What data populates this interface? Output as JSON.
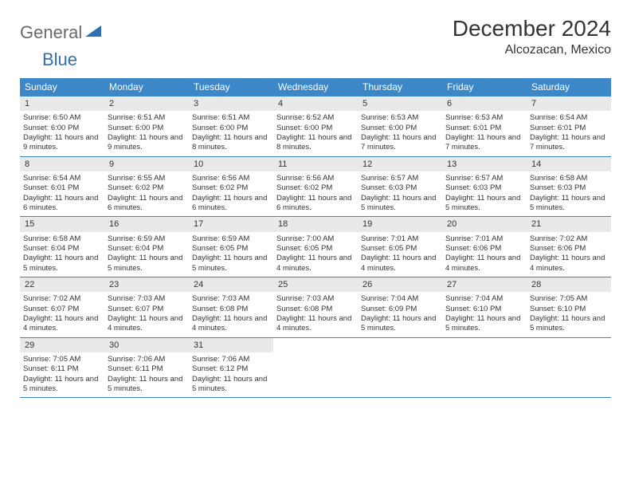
{
  "brand": {
    "word1": "General",
    "word2": "Blue"
  },
  "title": "December 2024",
  "location": "Alcozacan, Mexico",
  "colors": {
    "header_bg": "#3b87c8",
    "header_text": "#ffffff",
    "daynum_bg": "#e9e9e9",
    "border": "#3b87c8",
    "text": "#333333",
    "logo_gray": "#6a6a6a",
    "logo_blue": "#2f6fb0"
  },
  "days_of_week": [
    "Sunday",
    "Monday",
    "Tuesday",
    "Wednesday",
    "Thursday",
    "Friday",
    "Saturday"
  ],
  "weeks": [
    [
      {
        "n": "1",
        "sunrise": "6:50 AM",
        "sunset": "6:00 PM",
        "daylight": "11 hours and 9 minutes."
      },
      {
        "n": "2",
        "sunrise": "6:51 AM",
        "sunset": "6:00 PM",
        "daylight": "11 hours and 9 minutes."
      },
      {
        "n": "3",
        "sunrise": "6:51 AM",
        "sunset": "6:00 PM",
        "daylight": "11 hours and 8 minutes."
      },
      {
        "n": "4",
        "sunrise": "6:52 AM",
        "sunset": "6:00 PM",
        "daylight": "11 hours and 8 minutes."
      },
      {
        "n": "5",
        "sunrise": "6:53 AM",
        "sunset": "6:00 PM",
        "daylight": "11 hours and 7 minutes."
      },
      {
        "n": "6",
        "sunrise": "6:53 AM",
        "sunset": "6:01 PM",
        "daylight": "11 hours and 7 minutes."
      },
      {
        "n": "7",
        "sunrise": "6:54 AM",
        "sunset": "6:01 PM",
        "daylight": "11 hours and 7 minutes."
      }
    ],
    [
      {
        "n": "8",
        "sunrise": "6:54 AM",
        "sunset": "6:01 PM",
        "daylight": "11 hours and 6 minutes."
      },
      {
        "n": "9",
        "sunrise": "6:55 AM",
        "sunset": "6:02 PM",
        "daylight": "11 hours and 6 minutes."
      },
      {
        "n": "10",
        "sunrise": "6:56 AM",
        "sunset": "6:02 PM",
        "daylight": "11 hours and 6 minutes."
      },
      {
        "n": "11",
        "sunrise": "6:56 AM",
        "sunset": "6:02 PM",
        "daylight": "11 hours and 6 minutes."
      },
      {
        "n": "12",
        "sunrise": "6:57 AM",
        "sunset": "6:03 PM",
        "daylight": "11 hours and 5 minutes."
      },
      {
        "n": "13",
        "sunrise": "6:57 AM",
        "sunset": "6:03 PM",
        "daylight": "11 hours and 5 minutes."
      },
      {
        "n": "14",
        "sunrise": "6:58 AM",
        "sunset": "6:03 PM",
        "daylight": "11 hours and 5 minutes."
      }
    ],
    [
      {
        "n": "15",
        "sunrise": "6:58 AM",
        "sunset": "6:04 PM",
        "daylight": "11 hours and 5 minutes."
      },
      {
        "n": "16",
        "sunrise": "6:59 AM",
        "sunset": "6:04 PM",
        "daylight": "11 hours and 5 minutes."
      },
      {
        "n": "17",
        "sunrise": "6:59 AM",
        "sunset": "6:05 PM",
        "daylight": "11 hours and 5 minutes."
      },
      {
        "n": "18",
        "sunrise": "7:00 AM",
        "sunset": "6:05 PM",
        "daylight": "11 hours and 4 minutes."
      },
      {
        "n": "19",
        "sunrise": "7:01 AM",
        "sunset": "6:05 PM",
        "daylight": "11 hours and 4 minutes."
      },
      {
        "n": "20",
        "sunrise": "7:01 AM",
        "sunset": "6:06 PM",
        "daylight": "11 hours and 4 minutes."
      },
      {
        "n": "21",
        "sunrise": "7:02 AM",
        "sunset": "6:06 PM",
        "daylight": "11 hours and 4 minutes."
      }
    ],
    [
      {
        "n": "22",
        "sunrise": "7:02 AM",
        "sunset": "6:07 PM",
        "daylight": "11 hours and 4 minutes."
      },
      {
        "n": "23",
        "sunrise": "7:03 AM",
        "sunset": "6:07 PM",
        "daylight": "11 hours and 4 minutes."
      },
      {
        "n": "24",
        "sunrise": "7:03 AM",
        "sunset": "6:08 PM",
        "daylight": "11 hours and 4 minutes."
      },
      {
        "n": "25",
        "sunrise": "7:03 AM",
        "sunset": "6:08 PM",
        "daylight": "11 hours and 4 minutes."
      },
      {
        "n": "26",
        "sunrise": "7:04 AM",
        "sunset": "6:09 PM",
        "daylight": "11 hours and 5 minutes."
      },
      {
        "n": "27",
        "sunrise": "7:04 AM",
        "sunset": "6:10 PM",
        "daylight": "11 hours and 5 minutes."
      },
      {
        "n": "28",
        "sunrise": "7:05 AM",
        "sunset": "6:10 PM",
        "daylight": "11 hours and 5 minutes."
      }
    ],
    [
      {
        "n": "29",
        "sunrise": "7:05 AM",
        "sunset": "6:11 PM",
        "daylight": "11 hours and 5 minutes."
      },
      {
        "n": "30",
        "sunrise": "7:06 AM",
        "sunset": "6:11 PM",
        "daylight": "11 hours and 5 minutes."
      },
      {
        "n": "31",
        "sunrise": "7:06 AM",
        "sunset": "6:12 PM",
        "daylight": "11 hours and 5 minutes."
      },
      null,
      null,
      null,
      null
    ]
  ],
  "labels": {
    "sunrise_prefix": "Sunrise: ",
    "sunset_prefix": "Sunset: ",
    "daylight_prefix": "Daylight: "
  }
}
